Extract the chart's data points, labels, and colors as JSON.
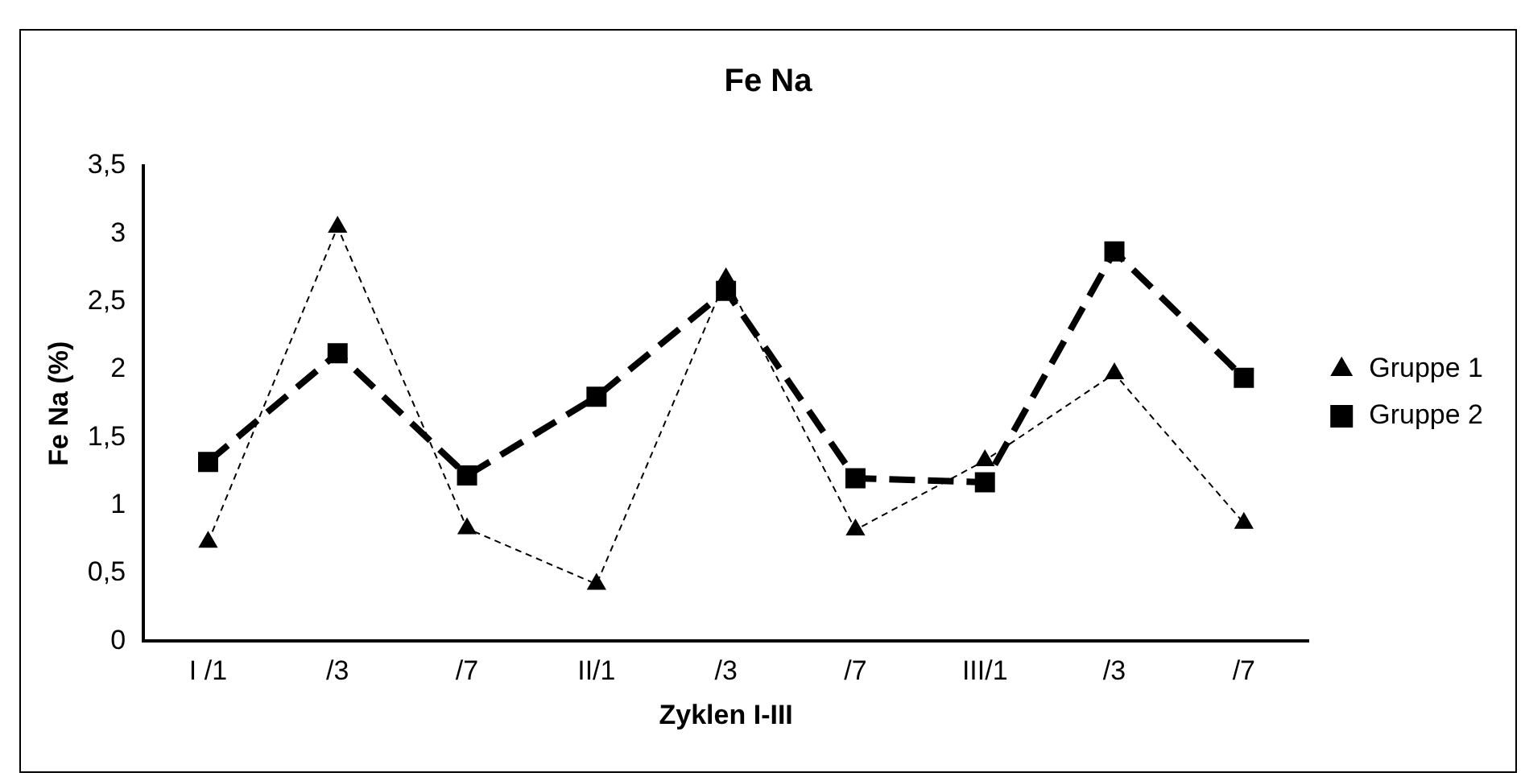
{
  "chart_data": {
    "type": "line",
    "title": "Fe Na",
    "xlabel": "Zyklen I-III",
    "ylabel": "Fe Na (%)",
    "categories": [
      "I /1",
      "/3",
      "/7",
      "II/1",
      "/3",
      "/7",
      "III/1",
      "/3",
      "/7"
    ],
    "series": [
      {
        "name": "Gruppe 1",
        "color": "#000000",
        "marker": "triangle",
        "line_style": "dashed",
        "values": [
          0.73,
          3.05,
          0.83,
          0.42,
          2.67,
          0.82,
          1.33,
          1.97,
          0.87
        ]
      },
      {
        "name": "Gruppe 2",
        "color": "#000000",
        "marker": "square",
        "line_style": "dashed",
        "values": [
          1.32,
          2.12,
          1.22,
          1.8,
          2.58,
          1.2,
          1.17,
          2.87,
          1.94
        ]
      }
    ],
    "ylim": [
      0,
      3.5
    ],
    "yticks": [
      0,
      {
        "value": 0.5,
        "label": "0,5"
      },
      1,
      {
        "value": 1.5,
        "label": "1,5"
      },
      2,
      {
        "value": 2.5,
        "label": "2,5"
      },
      3,
      {
        "value": 3.5,
        "label": "3,5"
      }
    ],
    "grid": false,
    "legend": "right"
  }
}
